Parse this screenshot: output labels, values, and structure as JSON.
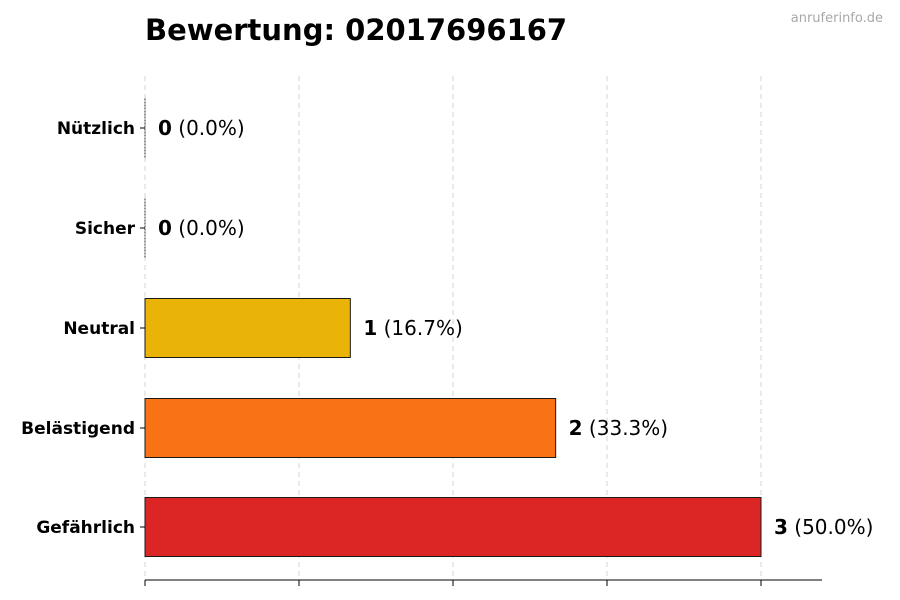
{
  "watermark": "anruferinfo.de",
  "chart_data": {
    "type": "bar",
    "orientation": "horizontal",
    "title": "Bewertung: 02017696167",
    "xlabel": "",
    "ylabel": "",
    "xlim": [
      0,
      3.3
    ],
    "grid": "x",
    "categories": [
      "Nützlich",
      "Sicher",
      "Neutral",
      "Belästigend",
      "Gefährlich"
    ],
    "values": [
      0,
      0,
      1,
      2,
      3
    ],
    "percent_labels": [
      "(0.0%)",
      "(0.0%)",
      "(16.7%)",
      "(33.3%)",
      "(50.0%)"
    ],
    "colors": [
      "#2e8b3e",
      "#3a7bd5",
      "#eab308",
      "#f97316",
      "#dc2626"
    ]
  }
}
